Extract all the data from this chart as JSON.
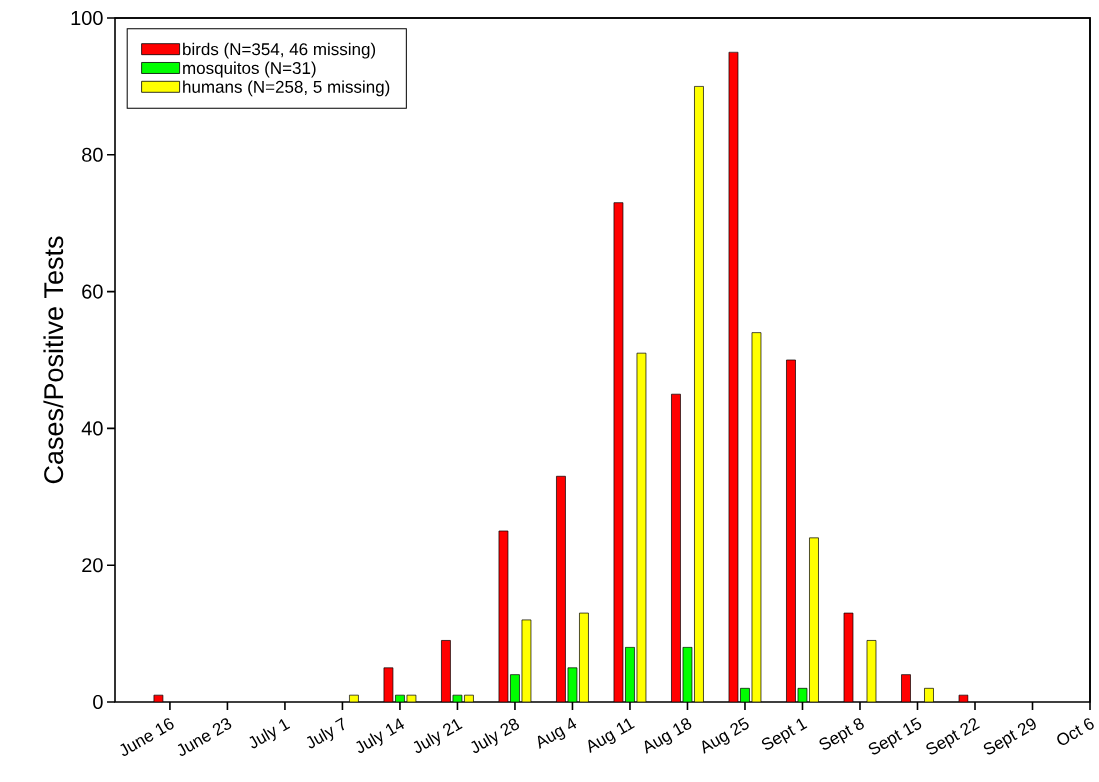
{
  "chart_data": {
    "type": "bar",
    "ylabel": "Cases/Positive Tests",
    "categories": [
      "June 16",
      "June 23",
      "July 1",
      "July 7",
      "July 14",
      "July 21",
      "July 28",
      "Aug 4",
      "Aug 11",
      "Aug 18",
      "Aug 25",
      "Sept 1",
      "Sept 8",
      "Sept 15",
      "Sept 22",
      "Sept 29",
      "Oct 6"
    ],
    "series": [
      {
        "name": "birds (N=354, 46 missing)",
        "color": "#ff0000",
        "values": [
          1,
          null,
          null,
          null,
          5,
          9,
          25,
          33,
          73,
          45,
          95,
          50,
          13,
          4,
          1,
          null,
          null
        ]
      },
      {
        "name": "mosquitos (N=31)",
        "color": "#00ff00",
        "values": [
          null,
          null,
          null,
          null,
          1,
          1,
          4,
          5,
          8,
          8,
          2,
          2,
          null,
          null,
          null,
          null,
          null
        ]
      },
      {
        "name": "humans (N=258, 5 missing)",
        "color": "#ffff00",
        "values": [
          null,
          null,
          null,
          1,
          1,
          1,
          12,
          13,
          51,
          90,
          54,
          24,
          9,
          2,
          null,
          null,
          null
        ]
      }
    ],
    "ylim": [
      0,
      100
    ],
    "yticks": [
      0,
      20,
      40,
      60,
      80,
      100
    ],
    "legend": "top left",
    "grid": false
  }
}
